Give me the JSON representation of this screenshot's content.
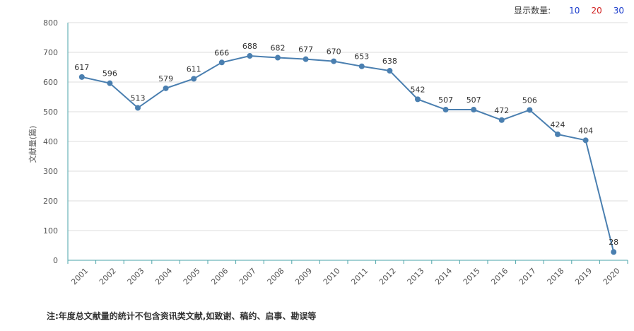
{
  "display_count": {
    "label": "显示数量:",
    "options": [
      {
        "label": "10",
        "color": "#1a3ccc"
      },
      {
        "label": "20",
        "color": "#d12020"
      },
      {
        "label": "30",
        "color": "#1a3ccc"
      }
    ]
  },
  "chart_data": {
    "type": "line",
    "title": "",
    "xlabel": "",
    "ylabel": "文献量(篇)",
    "ylim": [
      0,
      800
    ],
    "yticks": [
      0,
      100,
      200,
      300,
      400,
      500,
      600,
      700,
      800
    ],
    "grid": true,
    "categories": [
      "2001",
      "2002",
      "2003",
      "2004",
      "2005",
      "2006",
      "2007",
      "2008",
      "2009",
      "2010",
      "2011",
      "2012",
      "2013",
      "2014",
      "2015",
      "2016",
      "2017",
      "2018",
      "2019",
      "2020"
    ],
    "series": [
      {
        "name": "文献量",
        "color": "#4a7fb0",
        "values": [
          617,
          596,
          513,
          579,
          611,
          666,
          688,
          682,
          677,
          670,
          653,
          638,
          542,
          507,
          507,
          472,
          506,
          424,
          404,
          28
        ]
      }
    ]
  },
  "footnote": "注:年度总文献量的统计不包含资讯类文献,如致谢、稿约、启事、勘误等"
}
